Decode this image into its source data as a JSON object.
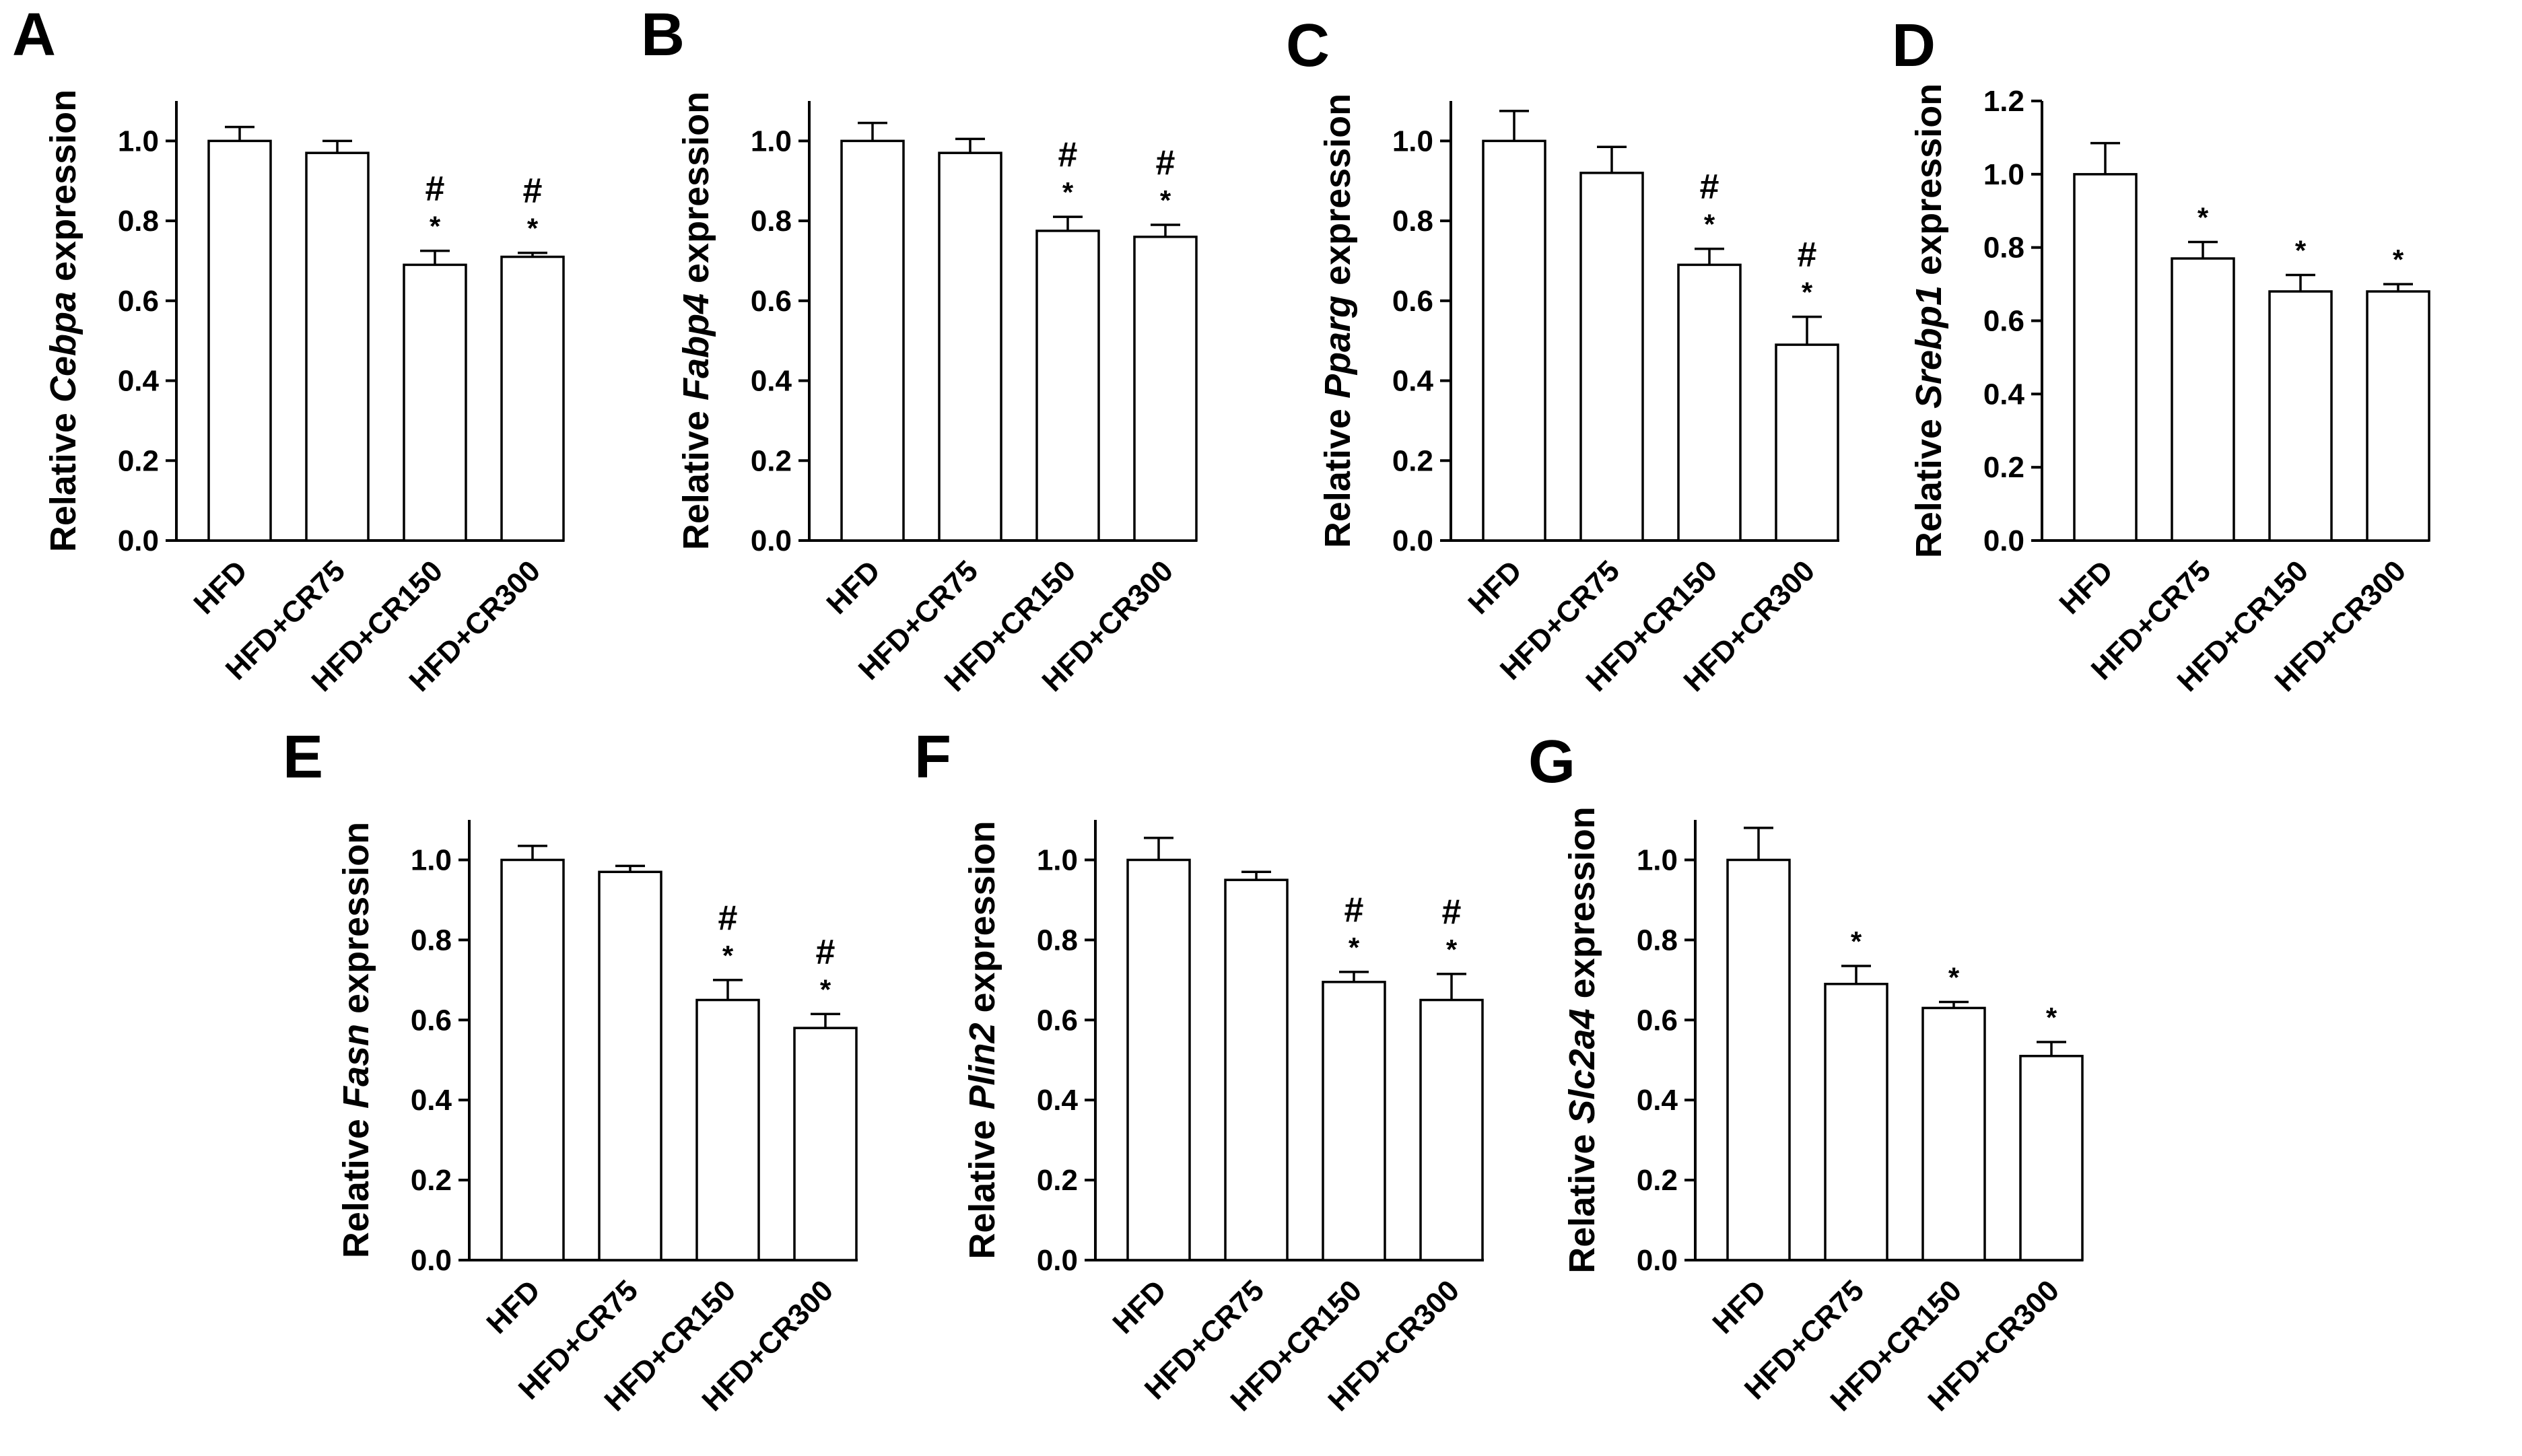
{
  "chart_data": [
    {
      "panel": "A",
      "type": "bar",
      "ylabel_prefix": "Relative ",
      "gene": "Cebpa",
      "ylabel_suffix": " expression",
      "categories": [
        "HFD",
        "HFD+CR75",
        "HFD+CR150",
        "HFD+CR300"
      ],
      "values": [
        1.0,
        0.97,
        0.69,
        0.71
      ],
      "errors": [
        0.035,
        0.03,
        0.035,
        0.01
      ],
      "significance": [
        [
          "",
          ""
        ],
        [
          "",
          ""
        ],
        [
          "*",
          "#"
        ],
        [
          "*",
          "#"
        ]
      ],
      "ylim": [
        0,
        1.1
      ],
      "ticks": [
        "0.0",
        "0.2",
        "0.4",
        "0.6",
        "0.8",
        "1.0"
      ]
    },
    {
      "panel": "B",
      "type": "bar",
      "ylabel_prefix": "Relative ",
      "gene": "Fabp4",
      "ylabel_suffix": " expression",
      "categories": [
        "HFD",
        "HFD+CR75",
        "HFD+CR150",
        "HFD+CR300"
      ],
      "values": [
        1.0,
        0.97,
        0.775,
        0.76
      ],
      "errors": [
        0.045,
        0.035,
        0.035,
        0.03
      ],
      "significance": [
        [
          "",
          ""
        ],
        [
          "",
          ""
        ],
        [
          "*",
          "#"
        ],
        [
          "*",
          "#"
        ]
      ],
      "ylim": [
        0,
        1.1
      ],
      "ticks": [
        "0.0",
        "0.2",
        "0.4",
        "0.6",
        "0.8",
        "1.0"
      ]
    },
    {
      "panel": "C",
      "type": "bar",
      "ylabel_prefix": "Relative ",
      "gene": "Pparg",
      "ylabel_suffix": " expression",
      "categories": [
        "HFD",
        "HFD+CR75",
        "HFD+CR150",
        "HFD+CR300"
      ],
      "values": [
        1.0,
        0.92,
        0.69,
        0.49
      ],
      "errors": [
        0.075,
        0.065,
        0.04,
        0.07
      ],
      "significance": [
        [
          "",
          ""
        ],
        [
          "",
          ""
        ],
        [
          "*",
          "#"
        ],
        [
          "*",
          "#"
        ]
      ],
      "ylim": [
        0,
        1.1
      ],
      "ticks": [
        "0.0",
        "0.2",
        "0.4",
        "0.6",
        "0.8",
        "1.0"
      ]
    },
    {
      "panel": "D",
      "type": "bar",
      "ylabel_prefix": "Relative ",
      "gene": "Srebp1",
      "ylabel_suffix": " expression",
      "categories": [
        "HFD",
        "HFD+CR75",
        "HFD+CR150",
        "HFD+CR300"
      ],
      "values": [
        1.0,
        0.77,
        0.68,
        0.68
      ],
      "errors": [
        0.085,
        0.045,
        0.045,
        0.02
      ],
      "significance": [
        [
          "",
          ""
        ],
        [
          "*",
          ""
        ],
        [
          "*",
          ""
        ],
        [
          "*",
          ""
        ]
      ],
      "ylim": [
        0,
        1.2
      ],
      "ticks": [
        "0.0",
        "0.2",
        "0.4",
        "0.6",
        "0.8",
        "1.0",
        "1.2"
      ]
    },
    {
      "panel": "E",
      "type": "bar",
      "ylabel_prefix": "Relative ",
      "gene": "Fasn",
      "ylabel_suffix": " expression",
      "categories": [
        "HFD",
        "HFD+CR75",
        "HFD+CR150",
        "HFD+CR300"
      ],
      "values": [
        1.0,
        0.97,
        0.65,
        0.58
      ],
      "errors": [
        0.035,
        0.015,
        0.05,
        0.035
      ],
      "significance": [
        [
          "",
          ""
        ],
        [
          "",
          ""
        ],
        [
          "*",
          "#"
        ],
        [
          "*",
          "#"
        ]
      ],
      "ylim": [
        0,
        1.1
      ],
      "ticks": [
        "0.0",
        "0.2",
        "0.4",
        "0.6",
        "0.8",
        "1.0"
      ]
    },
    {
      "panel": "F",
      "type": "bar",
      "ylabel_prefix": "Relative ",
      "gene": "Plin2",
      "ylabel_suffix": " expression",
      "categories": [
        "HFD",
        "HFD+CR75",
        "HFD+CR150",
        "HFD+CR300"
      ],
      "values": [
        1.0,
        0.95,
        0.695,
        0.65
      ],
      "errors": [
        0.055,
        0.02,
        0.025,
        0.065
      ],
      "significance": [
        [
          "",
          ""
        ],
        [
          "",
          ""
        ],
        [
          "*",
          "#"
        ],
        [
          "*",
          "#"
        ]
      ],
      "ylim": [
        0,
        1.1
      ],
      "ticks": [
        "0.0",
        "0.2",
        "0.4",
        "0.6",
        "0.8",
        "1.0"
      ]
    },
    {
      "panel": "G",
      "type": "bar",
      "ylabel_prefix": "Relative ",
      "gene": "Slc2a4",
      "ylabel_suffix": " expression",
      "categories": [
        "HFD",
        "HFD+CR75",
        "HFD+CR150",
        "HFD+CR300"
      ],
      "values": [
        1.0,
        0.69,
        0.63,
        0.51
      ],
      "errors": [
        0.08,
        0.045,
        0.015,
        0.035
      ],
      "significance": [
        [
          "",
          ""
        ],
        [
          "*",
          ""
        ],
        [
          "*",
          ""
        ],
        [
          "*",
          ""
        ]
      ],
      "ylim": [
        0,
        1.1
      ],
      "ticks": [
        "0.0",
        "0.2",
        "0.4",
        "0.6",
        "0.8",
        "1.0"
      ]
    }
  ]
}
